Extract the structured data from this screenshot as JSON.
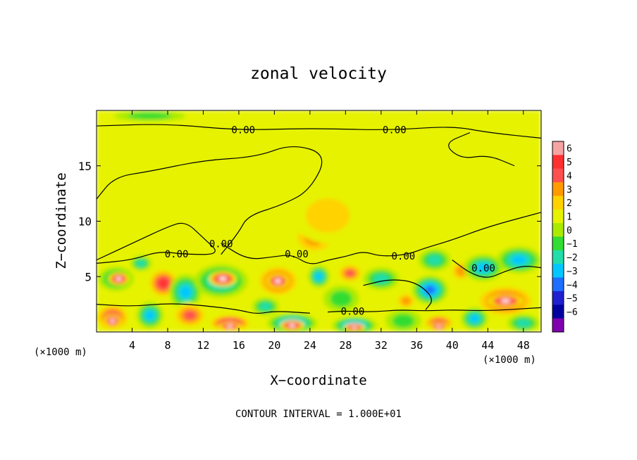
{
  "chart_data": {
    "type": "heatmap",
    "title": "zonal velocity",
    "xlabel": "X−coordinate",
    "ylabel": "Z−coordinate",
    "x_unit": "(×1000 m)",
    "y_unit": "(×1000 m)",
    "footnote": "CONTOUR INTERVAL = 1.000E+01",
    "xlim": [
      0,
      50
    ],
    "ylim": [
      0,
      20
    ],
    "x_ticks": [
      4,
      8,
      12,
      16,
      20,
      24,
      28,
      32,
      36,
      40,
      44,
      48
    ],
    "y_ticks": [
      5,
      10,
      15
    ],
    "colorbar": {
      "levels": [
        "6",
        "5",
        "4",
        "3",
        "2",
        "1",
        "0",
        "−1",
        "−2",
        "−3",
        "−4",
        "−5",
        "−6"
      ],
      "colors": [
        "#f5a3a3",
        "#ff3030",
        "#ff5050",
        "#ff9a00",
        "#ffd200",
        "#e6f200",
        "#aaeb00",
        "#33dd33",
        "#22ddaa",
        "#00c8ff",
        "#1e6eff",
        "#2020d0",
        "#0000a0",
        "#8000b0"
      ]
    },
    "contour_label": "0.00",
    "contour_label_positions": [
      [
        16.5,
        18.2
      ],
      [
        33.5,
        18.2
      ],
      [
        9.0,
        7.0
      ],
      [
        14.0,
        7.9
      ],
      [
        22.5,
        7.0
      ],
      [
        34.5,
        6.8
      ],
      [
        43.5,
        5.7
      ],
      [
        28.8,
        1.8
      ]
    ],
    "features": [
      {
        "x": 2.2,
        "z": 4.8,
        "rx": 2.0,
        "rz": 1.1,
        "v": -3.0
      },
      {
        "x": 2.5,
        "z": 4.8,
        "rx": 1.2,
        "rz": 0.6,
        "v": 7.0
      },
      {
        "x": 7.5,
        "z": 4.4,
        "rx": 1.8,
        "rz": 1.4,
        "v": 4.5
      },
      {
        "x": 5.0,
        "z": 6.2,
        "rx": 1.2,
        "rz": 0.7,
        "v": -2.5
      },
      {
        "x": 10.0,
        "z": 3.6,
        "rx": 1.8,
        "rz": 1.6,
        "v": -3.5
      },
      {
        "x": 14.0,
        "z": 4.6,
        "rx": 3.0,
        "rz": 1.5,
        "v": -4.0
      },
      {
        "x": 14.2,
        "z": 4.8,
        "rx": 1.6,
        "rz": 0.7,
        "v": 7.0
      },
      {
        "x": 20.4,
        "z": 4.6,
        "rx": 2.5,
        "rz": 1.5,
        "v": 4.5
      },
      {
        "x": 20.4,
        "z": 4.6,
        "rx": 1.3,
        "rz": 0.7,
        "v": 7.0
      },
      {
        "x": 25.0,
        "z": 5.0,
        "rx": 1.2,
        "rz": 1.0,
        "v": -4.0
      },
      {
        "x": 24.5,
        "z": 8.5,
        "rx": 2.6,
        "rz": 1.6,
        "v": 3.0
      },
      {
        "x": 26.0,
        "z": 10.5,
        "rx": 4.0,
        "rz": 2.5,
        "v": 1.3
      },
      {
        "x": 28.5,
        "z": 5.3,
        "rx": 1.5,
        "rz": 0.9,
        "v": 3.5
      },
      {
        "x": 27.5,
        "z": 3.0,
        "rx": 2.0,
        "rz": 1.2,
        "v": -2.0
      },
      {
        "x": 32.0,
        "z": 4.8,
        "rx": 2.0,
        "rz": 1.0,
        "v": -2.5
      },
      {
        "x": 34.8,
        "z": 2.8,
        "rx": 1.2,
        "rz": 0.8,
        "v": 3.0
      },
      {
        "x": 37.5,
        "z": 3.8,
        "rx": 2.0,
        "rz": 1.3,
        "v": -4.5
      },
      {
        "x": 38.0,
        "z": 6.5,
        "rx": 1.8,
        "rz": 1.0,
        "v": -3.0
      },
      {
        "x": 41.0,
        "z": 5.5,
        "rx": 1.3,
        "rz": 1.0,
        "v": 2.5
      },
      {
        "x": 43.5,
        "z": 5.8,
        "rx": 2.2,
        "rz": 1.2,
        "v": -3.5
      },
      {
        "x": 46.0,
        "z": 2.8,
        "rx": 3.5,
        "rz": 1.5,
        "v": 4.8
      },
      {
        "x": 46.0,
        "z": 2.8,
        "rx": 2.0,
        "rz": 0.6,
        "v": 7.0
      },
      {
        "x": 47.5,
        "z": 6.5,
        "rx": 2.5,
        "rz": 1.2,
        "v": -4.0
      },
      {
        "x": 1.8,
        "z": 1.3,
        "rx": 2.0,
        "rz": 1.3,
        "v": 5.0
      },
      {
        "x": 1.8,
        "z": 1.0,
        "rx": 1.0,
        "rz": 0.6,
        "v": 7.0
      },
      {
        "x": 6.0,
        "z": 1.5,
        "rx": 1.5,
        "rz": 1.2,
        "v": -4.0
      },
      {
        "x": 10.5,
        "z": 1.5,
        "rx": 2.0,
        "rz": 1.2,
        "v": 4.0
      },
      {
        "x": 15.0,
        "z": 0.8,
        "rx": 2.5,
        "rz": 0.8,
        "v": 5.5
      },
      {
        "x": 15.0,
        "z": 0.5,
        "rx": 1.3,
        "rz": 0.4,
        "v": 7.0
      },
      {
        "x": 19.0,
        "z": 2.3,
        "rx": 1.5,
        "rz": 0.8,
        "v": -2.5
      },
      {
        "x": 22.0,
        "z": 0.8,
        "rx": 2.8,
        "rz": 0.9,
        "v": -4.5
      },
      {
        "x": 22.0,
        "z": 0.6,
        "rx": 1.4,
        "rz": 0.5,
        "v": 7.0
      },
      {
        "x": 29.0,
        "z": 0.6,
        "rx": 2.5,
        "rz": 0.8,
        "v": -5.0
      },
      {
        "x": 29.0,
        "z": 0.4,
        "rx": 1.2,
        "rz": 0.4,
        "v": 7.0
      },
      {
        "x": 34.5,
        "z": 1.0,
        "rx": 2.0,
        "rz": 1.0,
        "v": -2.0
      },
      {
        "x": 38.5,
        "z": 0.8,
        "rx": 1.8,
        "rz": 0.8,
        "v": 5.0
      },
      {
        "x": 38.5,
        "z": 0.5,
        "rx": 1.0,
        "rz": 0.4,
        "v": 7.0
      },
      {
        "x": 42.5,
        "z": 1.2,
        "rx": 1.5,
        "rz": 1.0,
        "v": -4.0
      },
      {
        "x": 48.0,
        "z": 0.8,
        "rx": 1.8,
        "rz": 0.8,
        "v": -2.5
      },
      {
        "x": 6.0,
        "z": 19.5,
        "rx": 4.0,
        "rz": 0.5,
        "v": -2.0
      },
      {
        "x": 3.0,
        "z": 16.5,
        "rx": 2.0,
        "rz": 1.0,
        "v": 0.5
      }
    ]
  }
}
